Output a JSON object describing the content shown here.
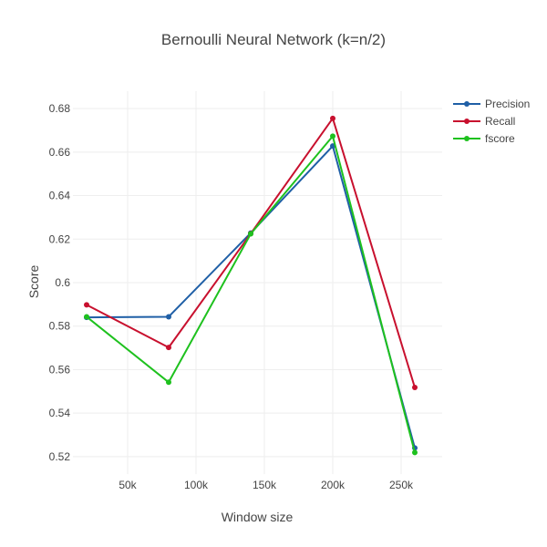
{
  "chart_data": {
    "type": "line",
    "title": "Bernoulli Neural Network (k=n/2)",
    "xlabel": "Window size",
    "ylabel": "Score",
    "x": [
      20000,
      80000,
      140000,
      200000,
      260000
    ],
    "xlim": [
      10000,
      280000
    ],
    "ylim": [
      0.512,
      0.688
    ],
    "xticks": [
      50000,
      100000,
      150000,
      200000,
      250000
    ],
    "xtick_labels": [
      "50k",
      "100k",
      "150k",
      "200k",
      "250k"
    ],
    "yticks": [
      0.52,
      0.54,
      0.56,
      0.58,
      0.6,
      0.62,
      0.64,
      0.66,
      0.68
    ],
    "ytick_labels": [
      "0.52",
      "0.54",
      "0.56",
      "0.58",
      "0.6",
      "0.62",
      "0.64",
      "0.66",
      "0.68"
    ],
    "grid": true,
    "legend_position": "top-right",
    "series": [
      {
        "name": "Precision",
        "color": "#1f5fa6",
        "values": [
          0.584,
          0.5843,
          0.6228,
          0.6628,
          0.524
        ]
      },
      {
        "name": "Recall",
        "color": "#c8102e",
        "values": [
          0.5898,
          0.5702,
          0.6225,
          0.6755,
          0.5518
        ]
      },
      {
        "name": "fscore",
        "color": "#1ec11e",
        "values": [
          0.5843,
          0.5542,
          0.6224,
          0.6673,
          0.5219
        ]
      }
    ]
  }
}
